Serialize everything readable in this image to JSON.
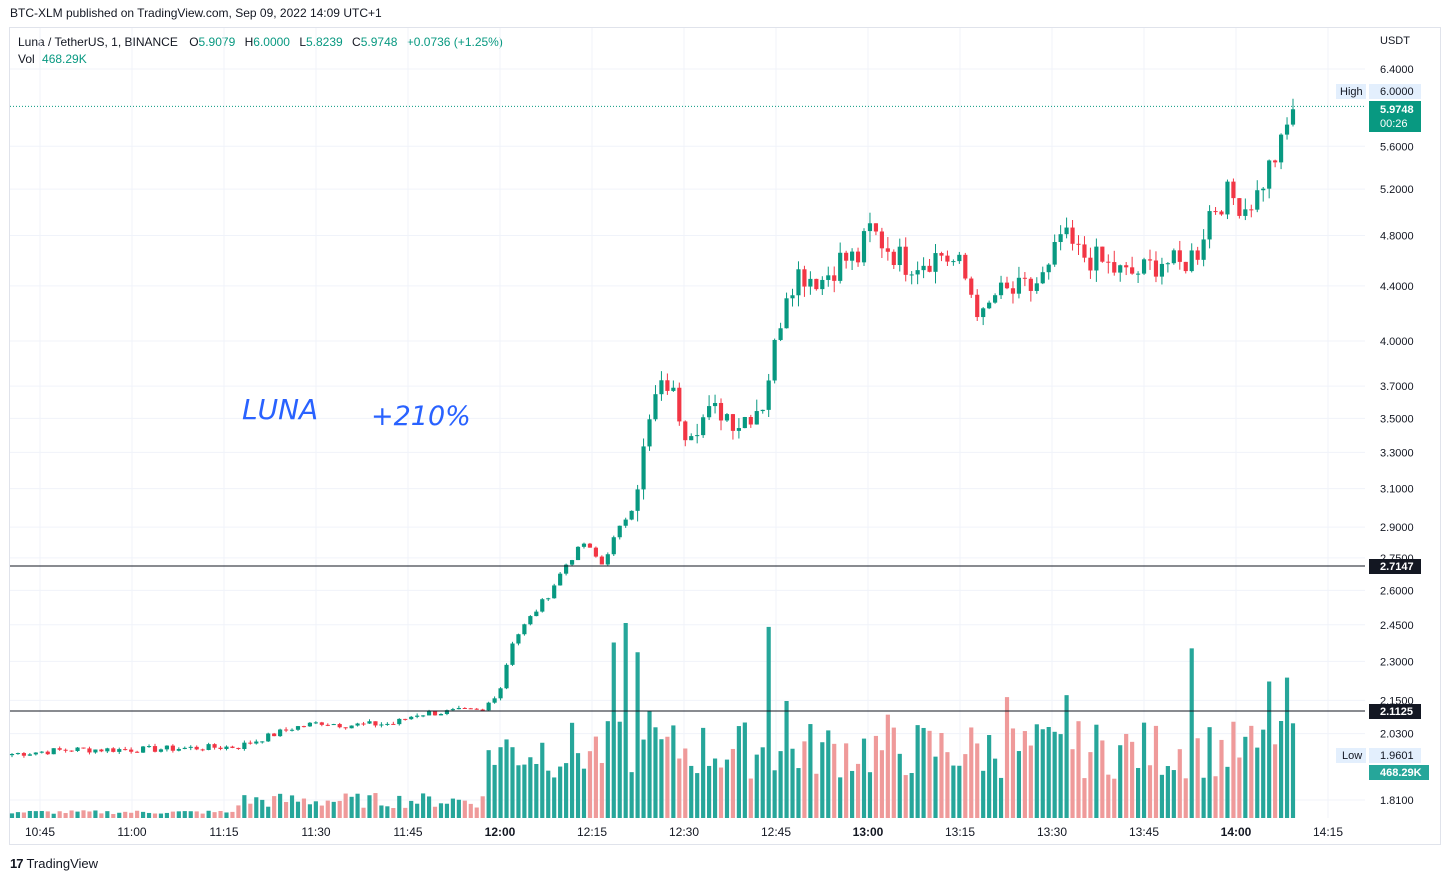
{
  "header": {
    "published_line": "BTC-XLM published on TradingView.com, Sep 09, 2022 14:09 UTC+1"
  },
  "legend": {
    "symbol": "Luna / TetherUS, 1, BINANCE",
    "o_key": "O",
    "o_val": "5.9079",
    "h_key": "H",
    "h_val": "6.0000",
    "l_key": "L",
    "l_val": "5.8239",
    "c_key": "C",
    "c_val": "5.9748",
    "change": "+0.0736 (+1.25%)",
    "vol_key": "Vol",
    "vol_val": "468.29K"
  },
  "annotations": {
    "name": "LUNA",
    "gain": "+210%"
  },
  "axis": {
    "currency": "USDT",
    "labels": [
      "6.4000",
      "5.6000",
      "5.2000",
      "4.8000",
      "4.4000",
      "4.0000",
      "3.7000",
      "3.5000",
      "3.3000",
      "3.1000",
      "2.9000",
      "2.7500",
      "2.6000",
      "2.4500",
      "2.3000",
      "2.1500",
      "2.0300",
      "1.8100"
    ],
    "high_label": "High",
    "high_value": "6.0000",
    "low_label": "Low",
    "low_value": "1.9601",
    "last_price": "5.9748",
    "countdown": "00:26",
    "level_upper": "2.7147",
    "level_lower": "2.1125",
    "vol_badge": "468.29K"
  },
  "time_labels": [
    "10:45",
    "11:00",
    "11:15",
    "11:30",
    "11:45",
    "12:00",
    "12:15",
    "12:30",
    "12:45",
    "13:00",
    "13:15",
    "13:30",
    "13:45",
    "14:00",
    "14:15"
  ],
  "colors": {
    "up": "#089981",
    "down": "#f23645",
    "up_vol": "#26a69a",
    "down_vol": "#ef9a9a",
    "annot": "#2962ff"
  },
  "footer": {
    "brand": "TradingView",
    "logo_glyph": "17"
  },
  "chart_data": {
    "type": "candlestick",
    "title": "Luna / TetherUS, 1, BINANCE",
    "ylabel": "USDT",
    "ylim": [
      1.75,
      6.6
    ],
    "high": 6.0,
    "low": 1.9601,
    "price_levels": [
      2.7147,
      2.1125
    ],
    "x_ticks": [
      "10:45",
      "11:00",
      "11:15",
      "11:30",
      "11:45",
      "12:00",
      "12:15",
      "12:30",
      "12:45",
      "13:00",
      "13:15",
      "13:30",
      "13:45",
      "14:00",
      "14:15"
    ],
    "keyframes": [
      {
        "i": 0,
        "p": 1.96
      },
      {
        "i": 10,
        "p": 1.975
      },
      {
        "i": 22,
        "p": 1.975
      },
      {
        "i": 38,
        "p": 1.985
      },
      {
        "i": 43,
        "p": 2.02
      },
      {
        "i": 47,
        "p": 2.05
      },
      {
        "i": 52,
        "p": 2.07
      },
      {
        "i": 56,
        "p": 2.06
      },
      {
        "i": 64,
        "p": 2.065
      },
      {
        "i": 68,
        "p": 2.1
      },
      {
        "i": 75,
        "p": 2.11
      },
      {
        "i": 79,
        "p": 2.11
      },
      {
        "i": 82,
        "p": 2.2
      },
      {
        "i": 84,
        "p": 2.38
      },
      {
        "i": 87,
        "p": 2.48
      },
      {
        "i": 90,
        "p": 2.58
      },
      {
        "i": 93,
        "p": 2.72
      },
      {
        "i": 96,
        "p": 2.82
      },
      {
        "i": 99,
        "p": 2.72
      },
      {
        "i": 101,
        "p": 2.84
      },
      {
        "i": 104,
        "p": 3.0
      },
      {
        "i": 106,
        "p": 3.3
      },
      {
        "i": 108,
        "p": 3.62
      },
      {
        "i": 110,
        "p": 3.72
      },
      {
        "i": 113,
        "p": 3.45
      },
      {
        "i": 116,
        "p": 3.5
      },
      {
        "i": 119,
        "p": 3.55
      },
      {
        "i": 122,
        "p": 3.48
      },
      {
        "i": 126,
        "p": 3.6
      },
      {
        "i": 128,
        "p": 3.95
      },
      {
        "i": 130,
        "p": 4.38
      },
      {
        "i": 132,
        "p": 4.5
      },
      {
        "i": 136,
        "p": 4.45
      },
      {
        "i": 139,
        "p": 4.6
      },
      {
        "i": 142,
        "p": 4.62
      },
      {
        "i": 144,
        "p": 4.85
      },
      {
        "i": 147,
        "p": 4.7
      },
      {
        "i": 150,
        "p": 4.58
      },
      {
        "i": 153,
        "p": 4.6
      },
      {
        "i": 156,
        "p": 4.65
      },
      {
        "i": 159,
        "p": 4.55
      },
      {
        "i": 161,
        "p": 4.35
      },
      {
        "i": 163,
        "p": 4.15
      },
      {
        "i": 165,
        "p": 4.33
      },
      {
        "i": 168,
        "p": 4.35
      },
      {
        "i": 171,
        "p": 4.38
      },
      {
        "i": 174,
        "p": 4.5
      },
      {
        "i": 176,
        "p": 4.8
      },
      {
        "i": 179,
        "p": 4.65
      },
      {
        "i": 182,
        "p": 4.6
      },
      {
        "i": 184,
        "p": 4.55
      },
      {
        "i": 187,
        "p": 4.48
      },
      {
        "i": 190,
        "p": 4.52
      },
      {
        "i": 193,
        "p": 4.6
      },
      {
        "i": 196,
        "p": 4.55
      },
      {
        "i": 199,
        "p": 4.68
      },
      {
        "i": 201,
        "p": 5.0
      },
      {
        "i": 204,
        "p": 5.15
      },
      {
        "i": 207,
        "p": 5.05
      },
      {
        "i": 209,
        "p": 5.15
      },
      {
        "i": 211,
        "p": 5.4
      },
      {
        "i": 213,
        "p": 5.6
      },
      {
        "i": 215,
        "p": 5.97
      }
    ],
    "volume_max": 1000,
    "volume_peaks": [
      {
        "i": 101,
        "v": 0.9
      },
      {
        "i": 103,
        "v": 1.0
      },
      {
        "i": 105,
        "v": 0.85
      },
      {
        "i": 107,
        "v": 0.55
      },
      {
        "i": 127,
        "v": 0.98
      },
      {
        "i": 130,
        "v": 0.6
      },
      {
        "i": 147,
        "v": 0.53
      },
      {
        "i": 167,
        "v": 0.62
      },
      {
        "i": 177,
        "v": 0.63
      },
      {
        "i": 198,
        "v": 0.87
      },
      {
        "i": 211,
        "v": 0.7
      },
      {
        "i": 214,
        "v": 0.72
      }
    ]
  }
}
